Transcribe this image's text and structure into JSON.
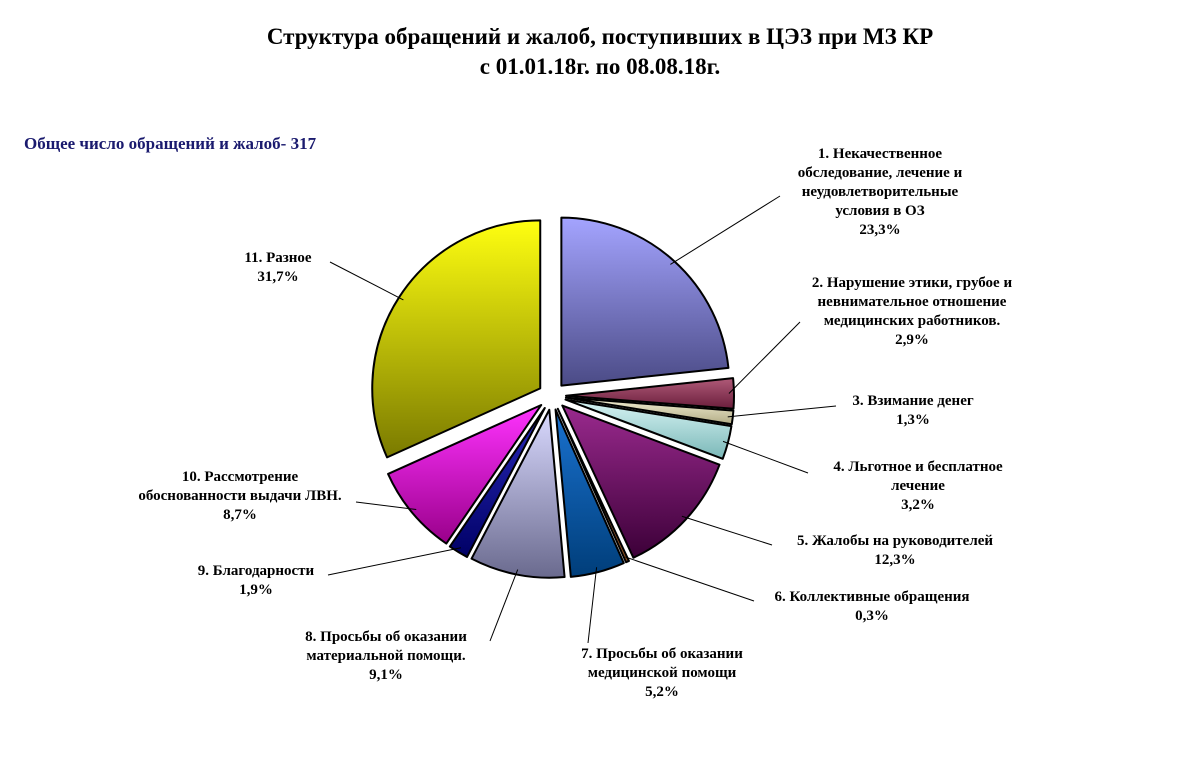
{
  "chart_data": {
    "type": "pie",
    "title_line1": "Структура обращений и жалоб, поступивших в ЦЭЗ при МЗ КР",
    "title_line2": "с 01.01.18г. по 08.08.18г.",
    "subtitle": "Общее число обращений и жалоб- 317",
    "slices": [
      {
        "label_lines": [
          "1. Некачественное",
          "обследование, лечение и",
          "неудовлетворительные",
          "условия в ОЗ"
        ],
        "pct_label": "23,3%",
        "value": 23.3,
        "color_light": "#a4a4ff",
        "color_dark": "#4b4b86"
      },
      {
        "label_lines": [
          "2. Нарушение этики, грубое и",
          "невнимательное отношение",
          "медицинских работников."
        ],
        "pct_label": "2,9%",
        "value": 2.9,
        "color_light": "#b05a78",
        "color_dark": "#6a1e3c"
      },
      {
        "label_lines": [
          "3. Взимание денег"
        ],
        "pct_label": "1,3%",
        "value": 1.3,
        "color_light": "#f2eed4",
        "color_dark": "#b3ad86"
      },
      {
        "label_lines": [
          "4. Льготное и бесплатное",
          "лечение"
        ],
        "pct_label": "3,2%",
        "value": 3.2,
        "color_light": "#d8f4f4",
        "color_dark": "#7ab8b8"
      },
      {
        "label_lines": [
          "5. Жалобы на руководителей"
        ],
        "pct_label": "12,3%",
        "value": 12.3,
        "color_light": "#9a2a8e",
        "color_dark": "#3c0038"
      },
      {
        "label_lines": [
          "6. Коллективные обращения"
        ],
        "pct_label": "0,3%",
        "value": 0.3,
        "color_light": "#e8a06a",
        "color_dark": "#8a4a1a"
      },
      {
        "label_lines": [
          "7. Просьбы об оказании",
          "медицинской помощи"
        ],
        "pct_label": "5,2%",
        "value": 5.2,
        "color_light": "#1a72d0",
        "color_dark": "#003e7a"
      },
      {
        "label_lines": [
          "8. Просьбы об оказании",
          "материальной помощи."
        ],
        "pct_label": "9,1%",
        "value": 9.1,
        "color_light": "#dadaff",
        "color_dark": "#6a6a8e"
      },
      {
        "label_lines": [
          "9. Благодарности"
        ],
        "pct_label": "1,9%",
        "value": 1.9,
        "color_light": "#2a2ab8",
        "color_dark": "#000066"
      },
      {
        "label_lines": [
          "10. Рассмотрение",
          "обоснованности выдачи ЛВН."
        ],
        "pct_label": "8,7%",
        "value": 8.7,
        "color_light": "#ff33ff",
        "color_dark": "#99008a"
      },
      {
        "label_lines": [
          "11. Разное"
        ],
        "pct_label": "31,7%",
        "value": 31.7,
        "color_light": "#ffff10",
        "color_dark": "#7a7a00"
      }
    ]
  }
}
